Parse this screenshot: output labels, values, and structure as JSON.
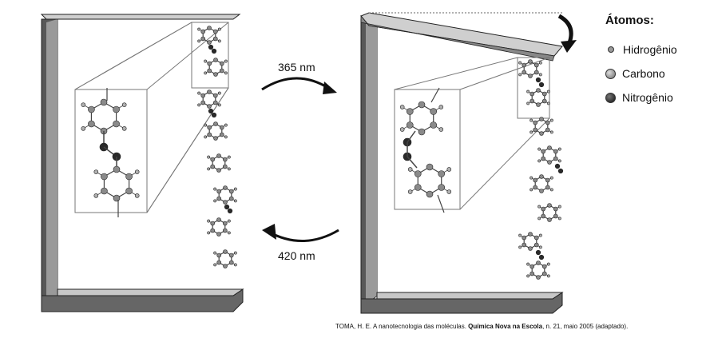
{
  "arrows": {
    "forward_label": "365 nm",
    "backward_label": "420 nm"
  },
  "legend": {
    "title": "Átomos:",
    "items": [
      {
        "label": "Hidrogênio",
        "color": "#9a9a9a",
        "size": "small"
      },
      {
        "label": "Carbono",
        "color": "#7a7a7a",
        "size": "medium"
      },
      {
        "label": "Nitrogênio",
        "color": "#222222",
        "size": "medium"
      }
    ]
  },
  "caption": {
    "prefix": "TOMA, H. E. A nanotecnologia das moléculas. ",
    "journal": "Química Nova na Escola",
    "suffix": ", n. 21, maio 2005 (adaptado)."
  },
  "colors": {
    "frame_dark": "#555555",
    "frame_light": "#d8d8d8",
    "atom_carbon": "#8a8a8a",
    "atom_nitrogen": "#2a2a2a",
    "atom_hydrogen": "#b0b0b0"
  }
}
